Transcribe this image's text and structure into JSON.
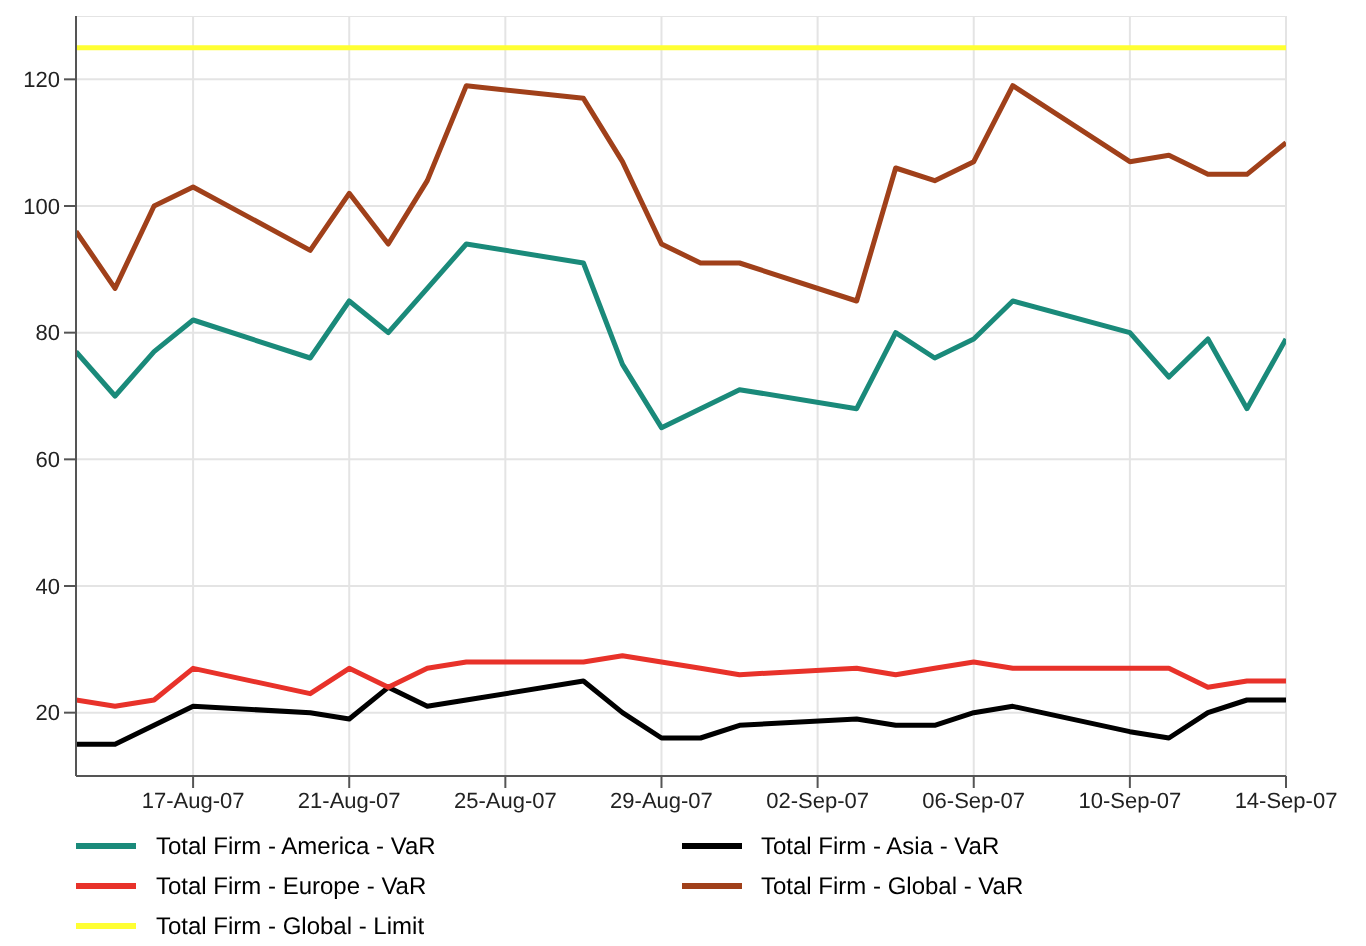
{
  "chart_data": {
    "type": "line",
    "x": [
      "--08-14",
      "--08-15",
      "--08-16",
      "--08-17",
      "--08-20",
      "--08-21",
      "--08-22",
      "--08-23",
      "--08-24",
      "--08-27",
      "--08-28",
      "--08-29",
      "--08-30",
      "--08-31",
      "--09-03",
      "--09-04",
      "--09-05",
      "--09-06",
      "--09-07",
      "--09-10",
      "--09-11",
      "--09-12",
      "--09-13",
      "--09-14"
    ],
    "series": [
      {
        "name": "Total Firm - America - VaR",
        "color": "#1a8a7a",
        "values": [
          77,
          70,
          77,
          82,
          76,
          85,
          80,
          87,
          94,
          91,
          75,
          65,
          68,
          71,
          68,
          80,
          76,
          79,
          85,
          80,
          73,
          79,
          68,
          79
        ]
      },
      {
        "name": "Total Firm - Asia - VaR",
        "color": "#000000",
        "values": [
          15,
          15,
          18,
          21,
          20,
          19,
          24,
          21,
          22,
          25,
          20,
          16,
          16,
          18,
          19,
          18,
          18,
          20,
          21,
          17,
          16,
          20,
          22,
          22
        ]
      },
      {
        "name": "Total Firm - Europe - VaR",
        "color": "#e8322a",
        "values": [
          22,
          21,
          22,
          27,
          23,
          27,
          24,
          27,
          28,
          28,
          29,
          28,
          27,
          26,
          27,
          26,
          27,
          28,
          27,
          27,
          27,
          24,
          25,
          25
        ]
      },
      {
        "name": "Total Firm - Global - VaR",
        "color": "#a0401a",
        "values": [
          96,
          87,
          100,
          103,
          93,
          102,
          94,
          104,
          119,
          117,
          107,
          94,
          91,
          91,
          85,
          106,
          104,
          107,
          119,
          107,
          108,
          105,
          105,
          110
        ]
      },
      {
        "name": "Total Firm - Global - Limit",
        "color": "#ffff33",
        "x": [
          "--08-14",
          "--09-14"
        ],
        "values": [
          125,
          125
        ]
      }
    ],
    "xlim": [
      "--08-14",
      "--09-14"
    ],
    "xticks": [
      {
        "value": "--08-17",
        "label": "17-Aug-07"
      },
      {
        "value": "--08-21",
        "label": "21-Aug-07"
      },
      {
        "value": "--08-25",
        "label": "25-Aug-07"
      },
      {
        "value": "--08-29",
        "label": "29-Aug-07"
      },
      {
        "value": "--09-02",
        "label": "02-Sep-07"
      },
      {
        "value": "--09-06",
        "label": "06-Sep-07"
      },
      {
        "value": "--09-10",
        "label": "10-Sep-07"
      },
      {
        "value": "--09-14",
        "label": "14-Sep-07"
      }
    ],
    "ylim": [
      10,
      130
    ],
    "yticks": [
      20,
      40,
      60,
      80,
      100,
      120
    ],
    "grid": true,
    "legend": "bottom",
    "marker": "none",
    "line_style": "solid"
  }
}
